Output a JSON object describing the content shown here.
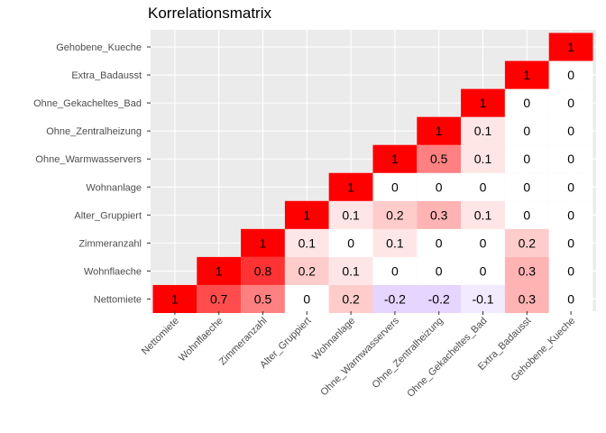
{
  "chart_data": {
    "type": "heatmap",
    "title": "Korrelationsmatrix",
    "variables": [
      "Nettomiete",
      "Wohnflaeche",
      "Zimmeranzahl",
      "Alter_Gruppiert",
      "Wohnanlage",
      "Ohne_Warmwasservers",
      "Ohne_Zentralheizung",
      "Ohne_Gekacheltes_Bad",
      "Extra_Badausst",
      "Gehobene_Kueche"
    ],
    "matrix_lower_triangle": [
      [
        1
      ],
      [
        0.7,
        1
      ],
      [
        0.5,
        0.8,
        1
      ],
      [
        0,
        0.2,
        0.1,
        1
      ],
      [
        0.2,
        0.1,
        0,
        0.1,
        1
      ],
      [
        -0.2,
        0,
        0.1,
        0.2,
        0,
        1
      ],
      [
        -0.2,
        0,
        0,
        0.3,
        0,
        0.5,
        1
      ],
      [
        -0.1,
        0,
        0,
        0.1,
        0,
        0.1,
        0.1,
        1
      ],
      [
        0.3,
        0.3,
        0.2,
        0,
        0,
        0,
        0,
        0,
        1
      ],
      [
        0,
        0,
        0,
        0,
        0,
        0,
        0,
        0,
        0,
        1
      ]
    ],
    "color_scale": {
      "low": "#7b2cff",
      "mid": "#ffffff",
      "high": "#ff0000",
      "limits": [
        -1,
        1
      ]
    },
    "panel_background": "#ebebeb",
    "grid": true,
    "legend": "none"
  }
}
